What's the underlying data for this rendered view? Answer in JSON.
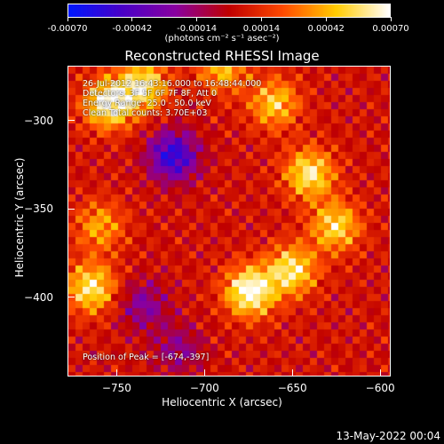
{
  "colorbar": {
    "ticks": [
      "-0.00070",
      "-0.00042",
      "-0.00014",
      "0.00014",
      "0.00042",
      "0.00070"
    ],
    "unit": "(photons cm⁻² s⁻¹ asec⁻²)",
    "colors": [
      "#0018ff",
      "#4a00c8",
      "#8a00a0",
      "#c00000",
      "#ff4a00",
      "#ffcc00",
      "#ffffff"
    ]
  },
  "chart_data": {
    "type": "heatmap",
    "title": "Reconstructed RHESSI Image",
    "xlabel": "Heliocentric X (arcsec)",
    "ylabel": "Heliocentric Y (arcsec)",
    "xlim": [
      -778,
      -594
    ],
    "ylim": [
      -445,
      -269
    ],
    "xticks": [
      -750,
      -700,
      -650,
      -600
    ],
    "yticks": [
      -300,
      -350,
      -400
    ],
    "colorbar_range": [
      -0.0007,
      0.0007
    ],
    "hotspots": [
      {
        "x": -755,
        "y": -290,
        "intensity": 0.00065
      },
      {
        "x": -735,
        "y": -280,
        "intensity": 0.00055
      },
      {
        "x": -660,
        "y": -290,
        "intensity": 0.00045
      },
      {
        "x": -640,
        "y": -330,
        "intensity": 0.00055
      },
      {
        "x": -625,
        "y": -360,
        "intensity": 0.0005
      },
      {
        "x": -674,
        "y": -397,
        "intensity": 0.0007
      },
      {
        "x": -650,
        "y": -385,
        "intensity": 0.00055
      },
      {
        "x": -765,
        "y": -395,
        "intensity": 0.00055
      },
      {
        "x": -760,
        "y": -360,
        "intensity": 0.00035
      },
      {
        "x": -690,
        "y": -270,
        "intensity": 0.0004
      }
    ],
    "coldspots": [
      {
        "x": -718,
        "y": -320,
        "intensity": -0.0006
      },
      {
        "x": -735,
        "y": -405,
        "intensity": -0.0003
      },
      {
        "x": -715,
        "y": -430,
        "intensity": -0.00025
      }
    ]
  },
  "annotations": {
    "time": "26-Jul-2012 16:43:16.000 to 16:48:44.000",
    "detectors": "Detectors: 3F 5F 6F 7F 8F, Att 0",
    "energy": "Energy Range: 25.0 - 50.0 keV",
    "clean": "Clean     Total counts: 3.70E+03",
    "peak": "Position of Peak = [-674,-397]"
  },
  "datestamp": "13-May-2022 00:04"
}
